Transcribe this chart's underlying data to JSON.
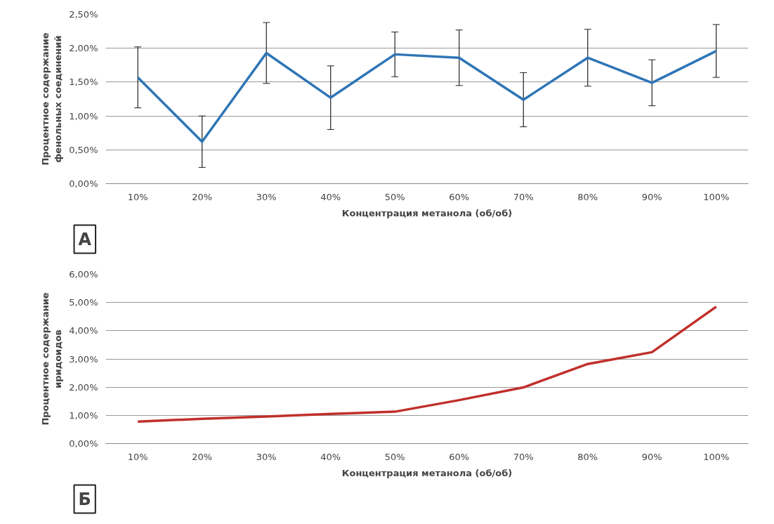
{
  "chart_data": [
    {
      "type": "line",
      "xlabel": "Концентрация метанола (об/об)",
      "ylabel": "Процентное содержание\nфенольных соединений",
      "categories": [
        "10%",
        "20%",
        "30%",
        "40%",
        "50%",
        "60%",
        "70%",
        "80%",
        "90%",
        "100%"
      ],
      "series": [
        {
          "color": "#2e75b6",
          "values": [
            1.57,
            0.62,
            1.93,
            1.27,
            1.91,
            1.86,
            1.24,
            1.86,
            1.49,
            1.96
          ],
          "errors": [
            0.45,
            0.38,
            0.45,
            0.47,
            0.33,
            0.41,
            0.4,
            0.42,
            0.34,
            0.39
          ]
        }
      ],
      "ylim": [
        0,
        2.5
      ],
      "yticks": [
        {
          "value": 0,
          "label": "0,00%"
        },
        {
          "value": 0.5,
          "label": "0,50%"
        },
        {
          "value": 1,
          "label": "1,00%"
        },
        {
          "value": 1.5,
          "label": "1,50%"
        },
        {
          "value": 2,
          "label": "2,00%"
        },
        {
          "value": 2.5,
          "label": "2,50%"
        }
      ],
      "grid": "y",
      "marker": "none",
      "annotations": [
        "А"
      ]
    },
    {
      "type": "line",
      "xlabel": "Концентрация метанола (об/об)",
      "ylabel": "Процентное содержание\nиридоидов",
      "categories": [
        "10%",
        "20%",
        "30%",
        "40%",
        "50%",
        "60%",
        "70%",
        "80%",
        "90%",
        "100%"
      ],
      "series": [
        {
          "color": "#c0302b",
          "values": [
            0.78,
            0.88,
            0.96,
            1.05,
            1.13,
            1.54,
            1.99,
            2.82,
            3.24,
            4.85
          ]
        }
      ],
      "ylim": [
        0,
        6
      ],
      "yticks": [
        {
          "value": 0,
          "label": "0,00%"
        },
        {
          "value": 1,
          "label": "1,00%"
        },
        {
          "value": 2,
          "label": "2,00%"
        },
        {
          "value": 3,
          "label": "3,00%"
        },
        {
          "value": 4,
          "label": "4,00%"
        },
        {
          "value": 5,
          "label": "5,00%"
        },
        {
          "value": 6,
          "label": "6,00%"
        }
      ],
      "grid": "y",
      "marker": "none",
      "annotations": [
        "Б"
      ]
    }
  ]
}
